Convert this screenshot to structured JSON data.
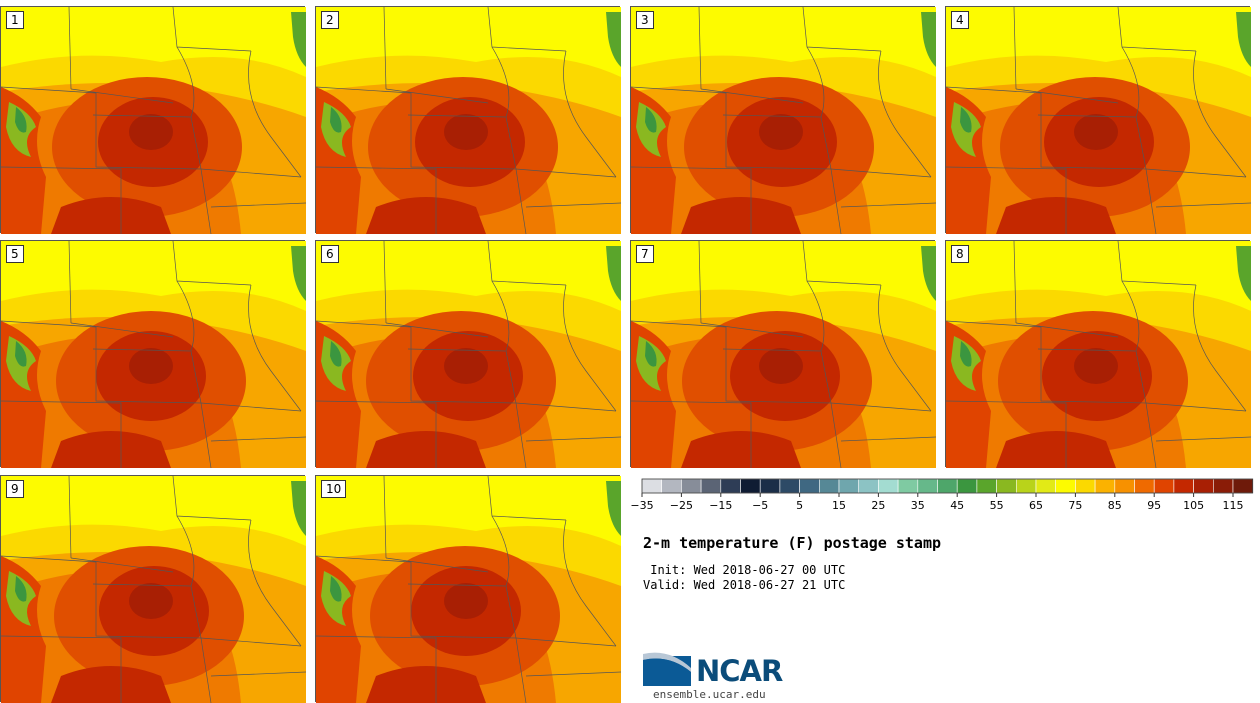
{
  "panels": [
    "1",
    "2",
    "3",
    "4",
    "5",
    "6",
    "7",
    "8",
    "9",
    "10"
  ],
  "legend": {
    "colors": [
      "#dcdee3",
      "#b3b7c0",
      "#878d99",
      "#5b6475",
      "#2e3d56",
      "#0f1c33",
      "#1b2e48",
      "#2d4a66",
      "#3f6882",
      "#568896",
      "#6fa6ad",
      "#8cc3c4",
      "#a3dcd1",
      "#7fcaa2",
      "#66b88a",
      "#4ea66a",
      "#3b963f",
      "#5aa52b",
      "#8ab820",
      "#b9d31a",
      "#e2ea16",
      "#fdfb00",
      "#fbd900",
      "#fbb200",
      "#f79100",
      "#ef6a00",
      "#e04400",
      "#c42800",
      "#a81f04",
      "#8a1c07",
      "#6e1a0a"
    ],
    "ticks": [
      "−35",
      "−25",
      "−15",
      "−5",
      "5",
      "15",
      "25",
      "35",
      "45",
      "55",
      "65",
      "75",
      "85",
      "95",
      "105",
      "115"
    ]
  },
  "title": "2-m temperature (F) postage stamp",
  "init": " Init: Wed 2018-06-27 00 UTC",
  "valid": "Valid: Wed 2018-06-27 21 UTC",
  "logo": {
    "name": "NCAR",
    "url": "ensemble.ucar.edu"
  }
}
